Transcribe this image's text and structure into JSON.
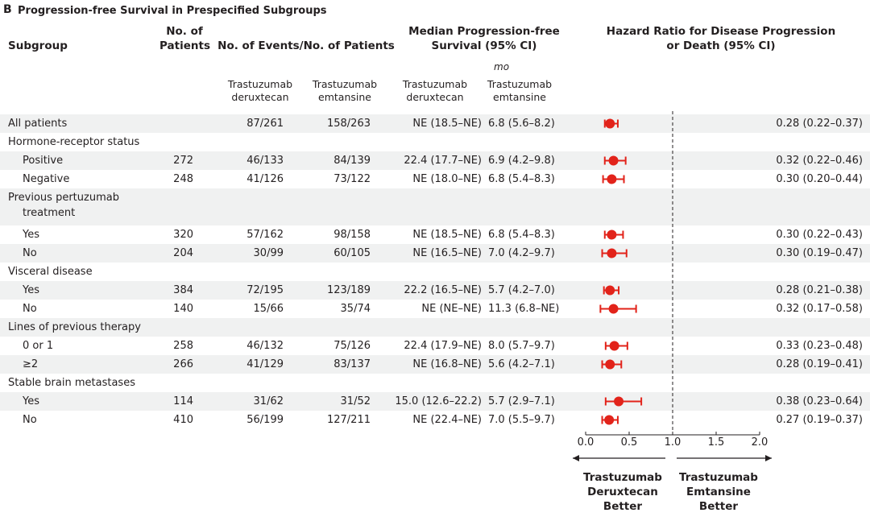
{
  "panel_label": "B",
  "title": "Progression-free Survival in Prespecified Subgroups",
  "headers": {
    "subgroup": "Subgroup",
    "patients": [
      "No. of",
      "Patients"
    ],
    "events": "No. of Events/No. of Patients",
    "median": [
      "Median Progression-free",
      "Survival (95% CI)"
    ],
    "median_unit": "mo",
    "hr": [
      "Hazard Ratio for Disease Progression",
      "or Death (95% CI)"
    ],
    "drug_a": [
      "Trastuzumab",
      "deruxtecan"
    ],
    "drug_b": [
      "Trastuzumab",
      "emtansine"
    ]
  },
  "rows": [
    {
      "label": "All patients",
      "indent": false,
      "band": true,
      "n": "",
      "ev_a": "87/261",
      "ev_b": "158/263",
      "med_a": "NE (18.5–NE)",
      "med_b": "6.8 (5.6–8.2)",
      "hr_text": "0.28 (0.22–0.37)",
      "hr": 0.28,
      "lo": 0.22,
      "hi": 0.37
    },
    {
      "label": "Hormone-receptor status",
      "indent": false,
      "band": false,
      "header": true
    },
    {
      "label": "Positive",
      "indent": true,
      "band": true,
      "n": "272",
      "ev_a": "46/133",
      "ev_b": "84/139",
      "med_a": "22.4 (17.7–NE)",
      "med_b": "6.9 (4.2–9.8)",
      "hr_text": "0.32 (0.22–0.46)",
      "hr": 0.32,
      "lo": 0.22,
      "hi": 0.46
    },
    {
      "label": "Negative",
      "indent": true,
      "band": false,
      "n": "248",
      "ev_a": "41/126",
      "ev_b": "73/122",
      "med_a": "NE (18.0–NE)",
      "med_b": "6.8 (5.4–8.3)",
      "hr_text": "0.30 (0.20–0.44)",
      "hr": 0.3,
      "lo": 0.2,
      "hi": 0.44
    },
    {
      "label": "Previous pertuzumab",
      "label2": "treatment",
      "indent": false,
      "band": true,
      "header": true,
      "tall": true
    },
    {
      "label": "Yes",
      "indent": true,
      "band": false,
      "n": "320",
      "ev_a": "57/162",
      "ev_b": "98/158",
      "med_a": "NE (18.5–NE)",
      "med_b": "6.8 (5.4–8.3)",
      "hr_text": "0.30 (0.22–0.43)",
      "hr": 0.3,
      "lo": 0.22,
      "hi": 0.43
    },
    {
      "label": "No",
      "indent": true,
      "band": true,
      "n": "204",
      "ev_a": "30/99",
      "ev_b": "60/105",
      "med_a": "NE (16.5–NE)",
      "med_b": "7.0 (4.2–9.7)",
      "hr_text": "0.30 (0.19–0.47)",
      "hr": 0.3,
      "lo": 0.19,
      "hi": 0.47
    },
    {
      "label": "Visceral disease",
      "indent": false,
      "band": false,
      "header": true
    },
    {
      "label": "Yes",
      "indent": true,
      "band": true,
      "n": "384",
      "ev_a": "72/195",
      "ev_b": "123/189",
      "med_a": "22.2 (16.5–NE)",
      "med_b": "5.7 (4.2–7.0)",
      "hr_text": "0.28 (0.21–0.38)",
      "hr": 0.28,
      "lo": 0.21,
      "hi": 0.38
    },
    {
      "label": "No",
      "indent": true,
      "band": false,
      "n": "140",
      "ev_a": "15/66",
      "ev_b": "35/74",
      "med_a": "NE (NE–NE)",
      "med_b": "11.3 (6.8–NE)",
      "hr_text": "0.32 (0.17–0.58)",
      "hr": 0.32,
      "lo": 0.17,
      "hi": 0.58
    },
    {
      "label": "Lines of previous therapy",
      "indent": false,
      "band": true,
      "header": true
    },
    {
      "label": "0 or 1",
      "indent": true,
      "band": false,
      "n": "258",
      "ev_a": "46/132",
      "ev_b": "75/126",
      "med_a": "22.4 (17.9–NE)",
      "med_b": "8.0 (5.7–9.7)",
      "hr_text": "0.33 (0.23–0.48)",
      "hr": 0.33,
      "lo": 0.23,
      "hi": 0.48
    },
    {
      "label": "≥2",
      "indent": true,
      "band": true,
      "n": "266",
      "ev_a": "41/129",
      "ev_b": "83/137",
      "med_a": "NE (16.8–NE)",
      "med_b": "5.6 (4.2–7.1)",
      "hr_text": "0.28 (0.19–0.41)",
      "hr": 0.28,
      "lo": 0.19,
      "hi": 0.41
    },
    {
      "label": "Stable brain metastases",
      "indent": false,
      "band": false,
      "header": true
    },
    {
      "label": "Yes",
      "indent": true,
      "band": true,
      "n": "114",
      "ev_a": "31/62",
      "ev_b": "31/52",
      "med_a": "15.0 (12.6–22.2)",
      "med_b": "5.7 (2.9–7.1)",
      "hr_text": "0.38 (0.23–0.64)",
      "hr": 0.38,
      "lo": 0.23,
      "hi": 0.64
    },
    {
      "label": "No",
      "indent": true,
      "band": false,
      "n": "410",
      "ev_a": "56/199",
      "ev_b": "127/211",
      "med_a": "NE (22.4–NE)",
      "med_b": "7.0 (5.5–9.7)",
      "hr_text": "0.27 (0.19–0.37)",
      "hr": 0.27,
      "lo": 0.19,
      "hi": 0.37
    }
  ],
  "axis": {
    "ticks": [
      "0.0",
      "0.5",
      "1.0",
      "1.5",
      "2.0"
    ]
  },
  "arrow_left": [
    "Trastuzumab",
    "Deruxtecan",
    "Better"
  ],
  "arrow_right": [
    "Trastuzumab",
    "Emtansine",
    "Better"
  ],
  "chart_data": {
    "type": "scatter",
    "title": "Progression-free Survival in Prespecified Subgroups",
    "xlabel": "",
    "xlim": [
      0,
      2
    ],
    "reference_line": 1.0,
    "categories": [
      "All patients",
      "Hormone-receptor positive",
      "Hormone-receptor negative",
      "Previous pertuzumab: Yes",
      "Previous pertuzumab: No",
      "Visceral disease: Yes",
      "Visceral disease: No",
      "Lines of previous therapy: 0 or 1",
      "Lines of previous therapy: ≥2",
      "Stable brain metastases: Yes",
      "Stable brain metastases: No"
    ],
    "series": [
      {
        "values": [
          0.28,
          0.32,
          0.3,
          0.3,
          0.3,
          0.28,
          0.32,
          0.33,
          0.28,
          0.38,
          0.27
        ],
        "lower": [
          0.22,
          0.22,
          0.2,
          0.22,
          0.19,
          0.21,
          0.17,
          0.23,
          0.19,
          0.23,
          0.19
        ],
        "upper": [
          0.37,
          0.46,
          0.44,
          0.43,
          0.47,
          0.38,
          0.58,
          0.48,
          0.41,
          0.64,
          0.37
        ]
      }
    ],
    "marker_color": "#e2231a"
  }
}
